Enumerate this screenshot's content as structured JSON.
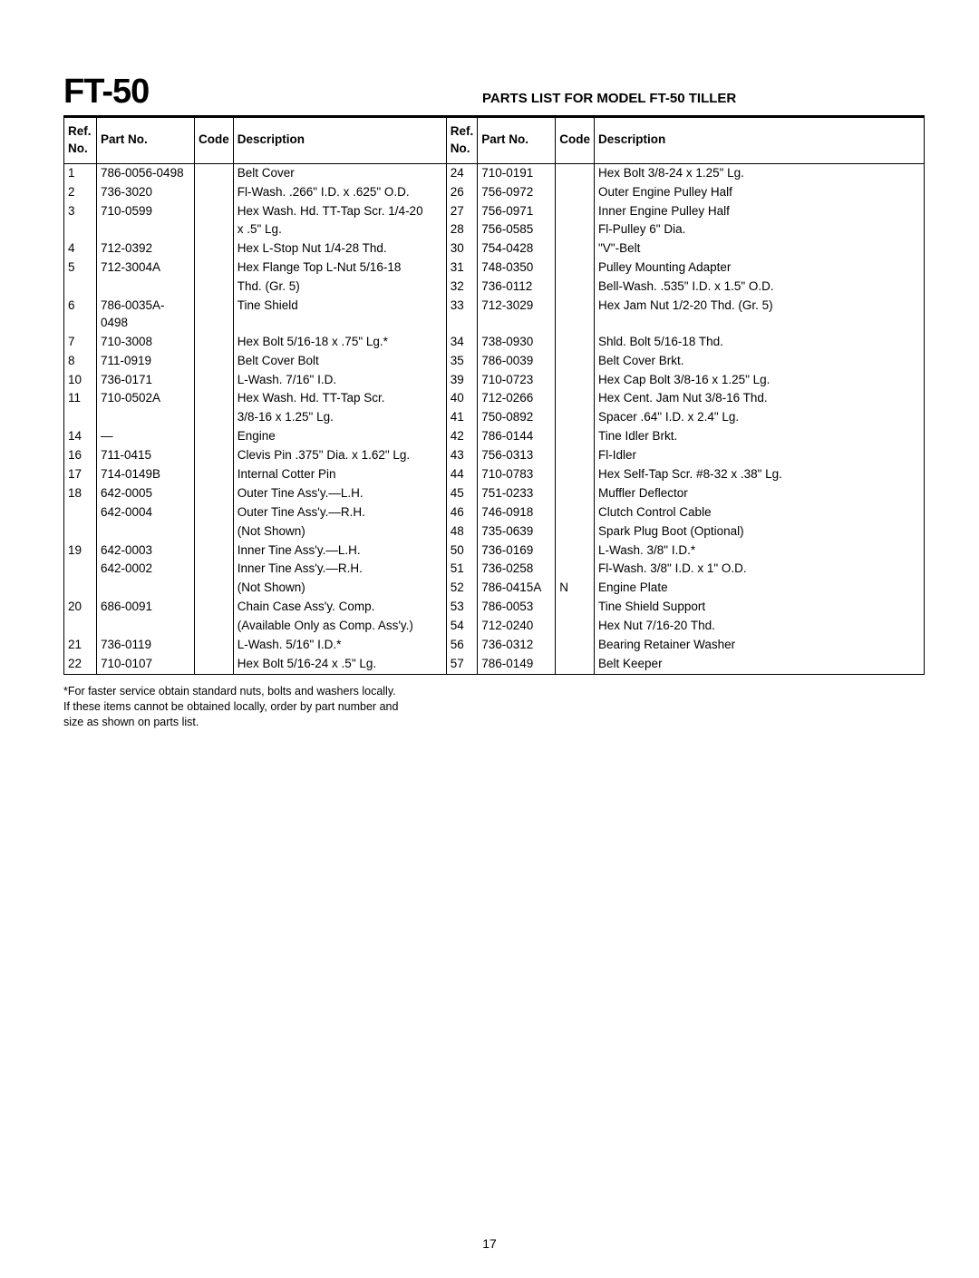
{
  "model": "FT-50",
  "title": "PARTS LIST FOR MODEL FT-50 TILLER",
  "columns": [
    "Ref. No.",
    "Part No.",
    "Code",
    "Description",
    "Ref. No.",
    "Part No.",
    "Code",
    "Description"
  ],
  "rows": [
    [
      "1",
      "786-0056-0498",
      "",
      "Belt Cover",
      "24",
      "710-0191",
      "",
      "Hex Bolt 3/8-24 x 1.25\" Lg."
    ],
    [
      "2",
      "736-3020",
      "",
      "Fl-Wash. .266\" I.D. x .625\" O.D.",
      "26",
      "756-0972",
      "",
      "Outer Engine Pulley Half"
    ],
    [
      "3",
      "710-0599",
      "",
      "Hex Wash. Hd. TT-Tap Scr. 1/4-20",
      "27",
      "756-0971",
      "",
      "Inner Engine Pulley Half"
    ],
    [
      "",
      "",
      "",
      "x .5\" Lg.",
      "28",
      "756-0585",
      "",
      "Fl-Pulley 6\" Dia."
    ],
    [
      "4",
      "712-0392",
      "",
      "Hex L-Stop Nut 1/4-28 Thd.",
      "30",
      "754-0428",
      "",
      "\"V\"-Belt"
    ],
    [
      "5",
      "712-3004A",
      "",
      "Hex Flange Top L-Nut 5/16-18",
      "31",
      "748-0350",
      "",
      "Pulley Mounting Adapter"
    ],
    [
      "",
      "",
      "",
      "Thd. (Gr. 5)",
      "32",
      "736-0112",
      "",
      "Bell-Wash. .535\" I.D. x 1.5\" O.D."
    ],
    [
      "6",
      "786-0035A-0498",
      "",
      "Tine Shield",
      "33",
      "712-3029",
      "",
      "Hex Jam Nut 1/2-20 Thd. (Gr. 5)"
    ],
    [
      "7",
      "710-3008",
      "",
      "Hex Bolt 5/16-18 x .75\" Lg.*",
      "34",
      "738-0930",
      "",
      "Shld. Bolt 5/16-18 Thd."
    ],
    [
      "8",
      "711-0919",
      "",
      "Belt Cover Bolt",
      "35",
      "786-0039",
      "",
      "Belt Cover Brkt."
    ],
    [
      "10",
      "736-0171",
      "",
      "L-Wash. 7/16\" I.D.",
      "39",
      "710-0723",
      "",
      "Hex Cap Bolt 3/8-16 x 1.25\" Lg."
    ],
    [
      "11",
      "710-0502A",
      "",
      "Hex Wash. Hd. TT-Tap Scr.",
      "40",
      "712-0266",
      "",
      "Hex Cent. Jam Nut 3/8-16 Thd."
    ],
    [
      "",
      "",
      "",
      "3/8-16 x 1.25\" Lg.",
      "41",
      "750-0892",
      "",
      "Spacer .64\" I.D. x 2.4\" Lg."
    ],
    [
      "14",
      "—",
      "",
      "Engine",
      "42",
      "786-0144",
      "",
      "Tine Idler Brkt."
    ],
    [
      "16",
      "711-0415",
      "",
      "Clevis Pin .375\" Dia. x 1.62\" Lg.",
      "43",
      "756-0313",
      "",
      "Fl-Idler"
    ],
    [
      "17",
      "714-0149B",
      "",
      "Internal Cotter Pin",
      "44",
      "710-0783",
      "",
      "Hex Self-Tap Scr. #8-32 x .38\"  Lg."
    ],
    [
      "18",
      "642-0005",
      "",
      "Outer Tine Ass'y.—L.H.",
      "45",
      "751-0233",
      "",
      "Muffler Deflector"
    ],
    [
      "",
      "642-0004",
      "",
      "Outer Tine Ass'y.—R.H.",
      "46",
      "746-0918",
      "",
      "Clutch Control Cable"
    ],
    [
      "",
      "",
      "",
      "(Not Shown)",
      "48",
      "735-0639",
      "",
      "Spark Plug Boot (Optional)"
    ],
    [
      "19",
      "642-0003",
      "",
      "Inner Tine Ass'y.—L.H.",
      "50",
      "736-0169",
      "",
      "L-Wash. 3/8\" I.D.*"
    ],
    [
      "",
      "642-0002",
      "",
      "Inner Tine Ass'y.—R.H.",
      "51",
      "736-0258",
      "",
      "Fl-Wash. 3/8\" I.D. x 1\" O.D."
    ],
    [
      "",
      "",
      "",
      "(Not Shown)",
      "52",
      "786-0415A",
      "N",
      "Engine Plate"
    ],
    [
      "20",
      "686-0091",
      "",
      "Chain Case Ass'y. Comp.",
      "53",
      "786-0053",
      "",
      "Tine Shield Support"
    ],
    [
      "",
      "",
      "",
      "(Available Only as Comp.  Ass'y.)",
      "54",
      "712-0240",
      "",
      "Hex Nut 7/16-20 Thd."
    ],
    [
      "21",
      "736-0119",
      "",
      "L-Wash. 5/16\" I.D.*",
      "56",
      "736-0312",
      "",
      "Bearing Retainer Washer"
    ],
    [
      "22",
      "710-0107",
      "",
      "Hex Bolt 5/16-24 x .5\" Lg.",
      "57",
      "786-0149",
      "",
      "Belt Keeper"
    ]
  ],
  "footnote_lines": [
    "*For faster service obtain standard nuts, bolts and washers locally.",
    "If these items cannot be obtained locally, order by part number and",
    "size as shown on parts list."
  ],
  "page_number": "17",
  "col_widths_class": [
    "col-ref",
    "col-part",
    "col-code",
    "col-desc",
    "col-ref2",
    "col-part2",
    "col-code2",
    ""
  ]
}
